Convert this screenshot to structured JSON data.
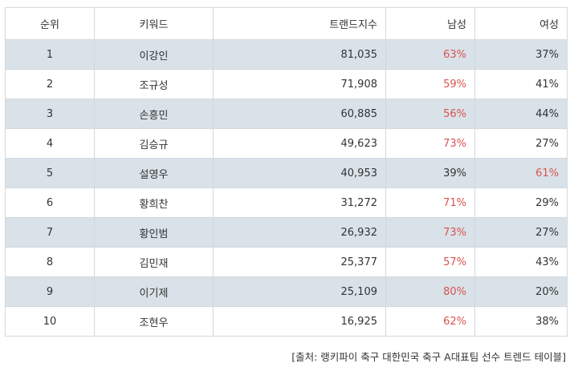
{
  "headers": {
    "rank": "순위",
    "keyword": "키워드",
    "trend_index": "트랜드지수",
    "male": "남성",
    "female": "여성"
  },
  "rows": [
    {
      "rank": "1",
      "keyword": "이강인",
      "trend_index": "81,035",
      "male": "63%",
      "female": "37%",
      "highlight": "male"
    },
    {
      "rank": "2",
      "keyword": "조규성",
      "trend_index": "71,908",
      "male": "59%",
      "female": "41%",
      "highlight": "male"
    },
    {
      "rank": "3",
      "keyword": "손흥민",
      "trend_index": "60,885",
      "male": "56%",
      "female": "44%",
      "highlight": "male"
    },
    {
      "rank": "4",
      "keyword": "김승규",
      "trend_index": "49,623",
      "male": "73%",
      "female": "27%",
      "highlight": "male"
    },
    {
      "rank": "5",
      "keyword": "설영우",
      "trend_index": "40,953",
      "male": "39%",
      "female": "61%",
      "highlight": "female"
    },
    {
      "rank": "6",
      "keyword": "황희찬",
      "trend_index": "31,272",
      "male": "71%",
      "female": "29%",
      "highlight": "male"
    },
    {
      "rank": "7",
      "keyword": "황인범",
      "trend_index": "26,932",
      "male": "73%",
      "female": "27%",
      "highlight": "male"
    },
    {
      "rank": "8",
      "keyword": "김민재",
      "trend_index": "25,377",
      "male": "57%",
      "female": "43%",
      "highlight": "male"
    },
    {
      "rank": "9",
      "keyword": "이기제",
      "trend_index": "25,109",
      "male": "80%",
      "female": "20%",
      "highlight": "male"
    },
    {
      "rank": "10",
      "keyword": "조현우",
      "trend_index": "16,925",
      "male": "62%",
      "female": "38%",
      "highlight": "male"
    }
  ],
  "source": "[출처: 랭키파이 축구 대한민국 축구 A대표팀 선수 트렌드 테이블]",
  "colors": {
    "highlight": "#d9534f",
    "alt_row": "#d9e2e8",
    "border": "#d3d8dc"
  }
}
